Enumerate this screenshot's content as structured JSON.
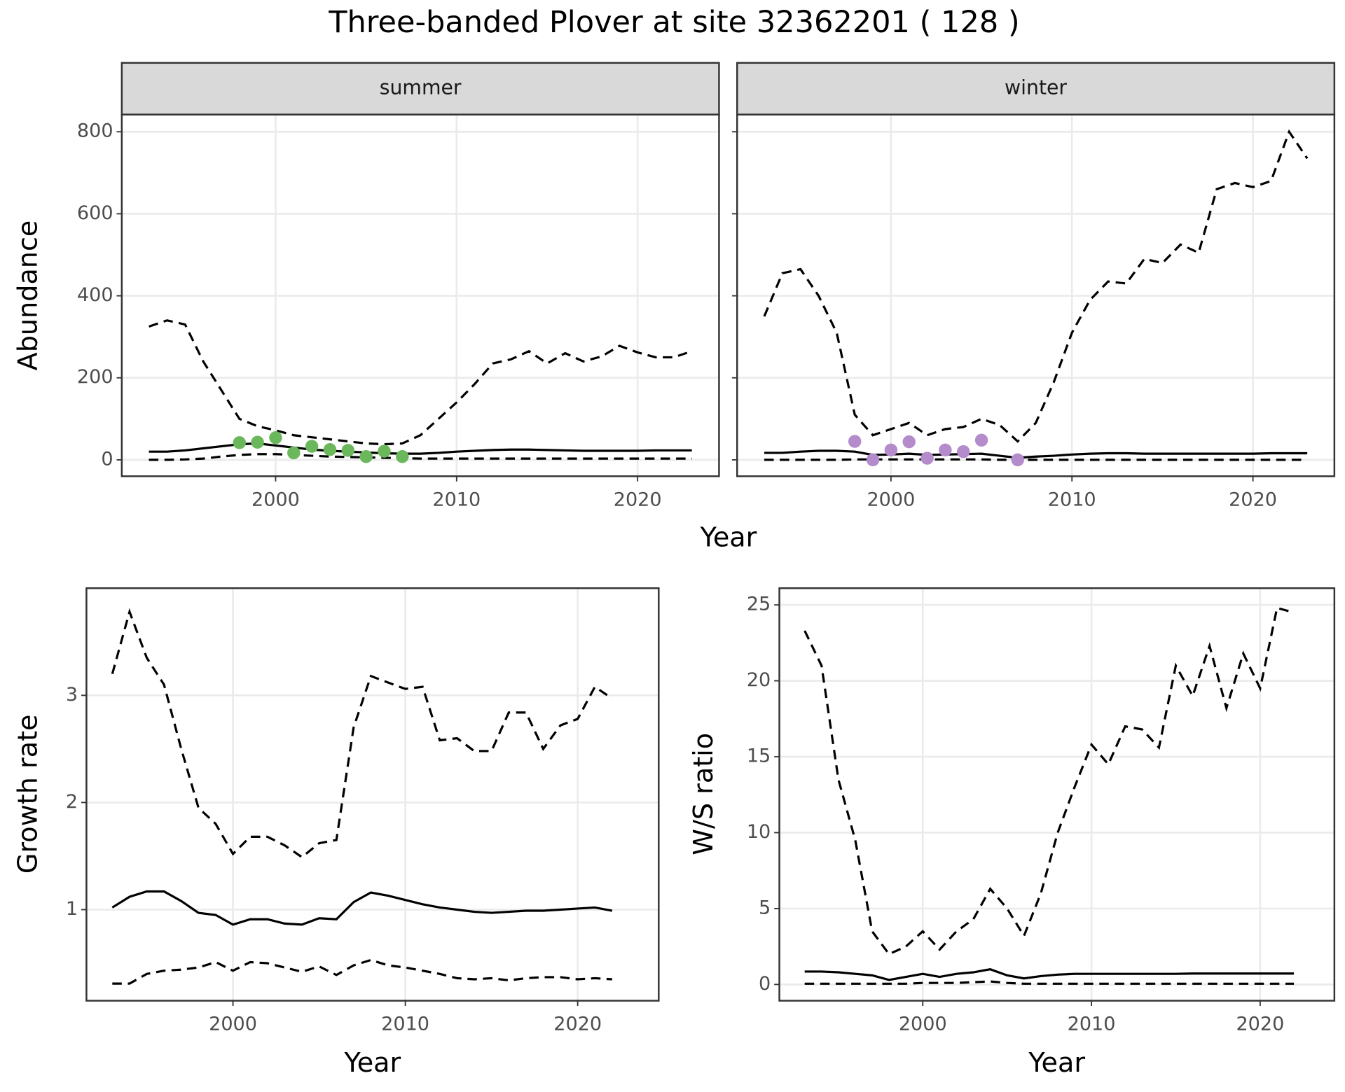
{
  "title": "Three-banded Plover at site 32362201 ( 128 )",
  "chart_data": [
    {
      "type": "line",
      "facet": "summer",
      "xlabel": "Year",
      "ylabel": "Abundance",
      "xlim": [
        1991.5,
        2024.5
      ],
      "xticks": [
        2000,
        2010,
        2020
      ],
      "ylim": [
        -40,
        842
      ],
      "yticks": [
        0,
        200,
        400,
        600,
        800
      ],
      "grid": true,
      "show_ytick_labels": true,
      "x": [
        1993,
        1994,
        1995,
        1996,
        1997,
        1998,
        1999,
        2000,
        2001,
        2002,
        2003,
        2004,
        2005,
        2006,
        2007,
        2008,
        2009,
        2010,
        2011,
        2012,
        2013,
        2014,
        2015,
        2016,
        2017,
        2018,
        2019,
        2020,
        2021,
        2022,
        2023
      ],
      "series": [
        {
          "color": "#000000",
          "dashed": true,
          "values": [
            325,
            340,
            330,
            240,
            170,
            100,
            82,
            72,
            60,
            55,
            50,
            45,
            40,
            38,
            40,
            60,
            100,
            140,
            185,
            235,
            245,
            265,
            235,
            260,
            240,
            252,
            278,
            262,
            250,
            250,
            265
          ]
        },
        {
          "color": "#000000",
          "dashed": false,
          "values": [
            20,
            20,
            23,
            28,
            33,
            38,
            40,
            35,
            30,
            25,
            22,
            20,
            18,
            16,
            15,
            15,
            17,
            20,
            22,
            24,
            25,
            25,
            24,
            23,
            22,
            22,
            22,
            22,
            23,
            23,
            23
          ]
        },
        {
          "color": "#000000",
          "dashed": true,
          "values": [
            0,
            0,
            1,
            3,
            8,
            12,
            14,
            14,
            12,
            10,
            8,
            7,
            6,
            5,
            4,
            3,
            3,
            3,
            3,
            3,
            3,
            3,
            3,
            3,
            3,
            3,
            3,
            3,
            3,
            3,
            3
          ]
        }
      ],
      "points": {
        "color": "#6bb85c",
        "x": [
          1998,
          1999,
          2000,
          2001,
          2002,
          2003,
          2004,
          2005,
          2006,
          2007
        ],
        "values": [
          42,
          43,
          54,
          17,
          33,
          25,
          23,
          8,
          21,
          8
        ]
      }
    },
    {
      "type": "line",
      "facet": "winter",
      "xlim": [
        1991.5,
        2024.5
      ],
      "xticks": [
        2000,
        2010,
        2020
      ],
      "ylim": [
        -40,
        842
      ],
      "yticks": [
        0,
        200,
        400,
        600,
        800
      ],
      "grid": true,
      "show_ytick_labels": false,
      "x": [
        1993,
        1994,
        1995,
        1996,
        1997,
        1998,
        1999,
        2000,
        2001,
        2002,
        2003,
        2004,
        2005,
        2006,
        2007,
        2008,
        2009,
        2010,
        2011,
        2012,
        2013,
        2014,
        2015,
        2016,
        2017,
        2018,
        2019,
        2020,
        2021,
        2022,
        2023
      ],
      "series": [
        {
          "color": "#000000",
          "dashed": true,
          "values": [
            350,
            455,
            465,
            400,
            310,
            110,
            60,
            75,
            90,
            60,
            75,
            80,
            100,
            85,
            45,
            90,
            190,
            310,
            390,
            435,
            430,
            490,
            480,
            525,
            505,
            660,
            675,
            665,
            680,
            800,
            735
          ]
        },
        {
          "color": "#000000",
          "dashed": false,
          "values": [
            17,
            17,
            20,
            22,
            22,
            20,
            12,
            13,
            15,
            12,
            13,
            14,
            15,
            10,
            5,
            8,
            10,
            13,
            15,
            16,
            16,
            15,
            15,
            15,
            15,
            15,
            15,
            15,
            16,
            16,
            16
          ]
        },
        {
          "color": "#000000",
          "dashed": true,
          "values": [
            0,
            0,
            0,
            0,
            0,
            1,
            1,
            1,
            1,
            1,
            1,
            1,
            1,
            0,
            0,
            0,
            0,
            0,
            0,
            0,
            0,
            0,
            0,
            0,
            0,
            0,
            0,
            0,
            0,
            0,
            0
          ]
        }
      ],
      "points": {
        "color": "#b48ccb",
        "x": [
          1998,
          1999,
          2000,
          2001,
          2002,
          2003,
          2004,
          2005,
          2007
        ],
        "values": [
          45,
          0,
          24,
          44,
          4,
          24,
          20,
          48,
          0
        ]
      }
    },
    {
      "type": "line",
      "xlabel": "Year",
      "ylabel": "Growth rate",
      "xlim": [
        1991.5,
        2024.7
      ],
      "xticks": [
        2000,
        2010,
        2020
      ],
      "ylim": [
        0.15,
        4.0
      ],
      "yticks": [
        1,
        2,
        3
      ],
      "grid": true,
      "show_ytick_labels": true,
      "x": [
        1993,
        1994,
        1995,
        1996,
        1997,
        1998,
        1999,
        2000,
        2001,
        2002,
        2003,
        2004,
        2005,
        2006,
        2007,
        2008,
        2009,
        2010,
        2011,
        2012,
        2013,
        2014,
        2015,
        2016,
        2017,
        2018,
        2019,
        2020,
        2021,
        2022
      ],
      "series": [
        {
          "color": "#000000",
          "dashed": true,
          "values": [
            3.2,
            3.78,
            3.35,
            3.1,
            2.5,
            1.95,
            1.8,
            1.52,
            1.68,
            1.68,
            1.6,
            1.49,
            1.62,
            1.65,
            2.7,
            3.18,
            3.12,
            3.06,
            3.08,
            2.58,
            2.6,
            2.48,
            2.48,
            2.84,
            2.84,
            2.5,
            2.72,
            2.78,
            3.08,
            2.97
          ]
        },
        {
          "color": "#000000",
          "dashed": false,
          "values": [
            1.02,
            1.12,
            1.17,
            1.17,
            1.08,
            0.97,
            0.95,
            0.86,
            0.91,
            0.91,
            0.87,
            0.86,
            0.92,
            0.91,
            1.07,
            1.16,
            1.13,
            1.09,
            1.05,
            1.02,
            1.0,
            0.98,
            0.97,
            0.98,
            0.99,
            0.99,
            1.0,
            1.01,
            1.02,
            0.99
          ]
        },
        {
          "color": "#000000",
          "dashed": true,
          "values": [
            0.31,
            0.31,
            0.4,
            0.43,
            0.44,
            0.46,
            0.51,
            0.43,
            0.51,
            0.5,
            0.46,
            0.42,
            0.47,
            0.39,
            0.48,
            0.53,
            0.48,
            0.46,
            0.43,
            0.4,
            0.36,
            0.35,
            0.36,
            0.34,
            0.36,
            0.37,
            0.37,
            0.35,
            0.36,
            0.35
          ]
        }
      ]
    },
    {
      "type": "line",
      "xlabel": "Year",
      "ylabel": "W/S ratio",
      "xlim": [
        1991.5,
        2024.4
      ],
      "xticks": [
        2000,
        2010,
        2020
      ],
      "ylim": [
        -1.07,
        26.1
      ],
      "yticks": [
        0,
        5,
        10,
        15,
        20,
        25
      ],
      "grid": true,
      "show_ytick_labels": true,
      "x": [
        1993,
        1994,
        1995,
        1996,
        1997,
        1998,
        1999,
        2000,
        2001,
        2002,
        2003,
        2004,
        2005,
        2006,
        2007,
        2008,
        2009,
        2010,
        2011,
        2012,
        2013,
        2014,
        2015,
        2016,
        2017,
        2018,
        2019,
        2020,
        2021,
        2022
      ],
      "series": [
        {
          "color": "#000000",
          "dashed": true,
          "values": [
            23.3,
            21,
            13.5,
            9.5,
            3.5,
            2.0,
            2.5,
            3.5,
            2.3,
            3.5,
            4.3,
            6.3,
            5.0,
            3.2,
            6.0,
            10,
            13,
            15.8,
            14.5,
            17,
            16.8,
            15.6,
            21,
            19,
            22.3,
            18.2,
            21.8,
            19.5,
            24.8,
            24.5
          ]
        },
        {
          "color": "#000000",
          "dashed": false,
          "values": [
            0.85,
            0.85,
            0.8,
            0.7,
            0.6,
            0.3,
            0.5,
            0.7,
            0.5,
            0.7,
            0.8,
            1.0,
            0.6,
            0.4,
            0.55,
            0.65,
            0.7,
            0.7,
            0.7,
            0.7,
            0.7,
            0.7,
            0.7,
            0.72,
            0.72,
            0.72,
            0.72,
            0.72,
            0.72,
            0.72
          ]
        },
        {
          "color": "#000000",
          "dashed": true,
          "values": [
            0.05,
            0.05,
            0.05,
            0.05,
            0.05,
            0.05,
            0.05,
            0.1,
            0.1,
            0.1,
            0.15,
            0.2,
            0.1,
            0.05,
            0.05,
            0.05,
            0.05,
            0.05,
            0.05,
            0.05,
            0.05,
            0.05,
            0.05,
            0.05,
            0.05,
            0.05,
            0.05,
            0.05,
            0.05,
            0.05
          ]
        }
      ]
    }
  ]
}
